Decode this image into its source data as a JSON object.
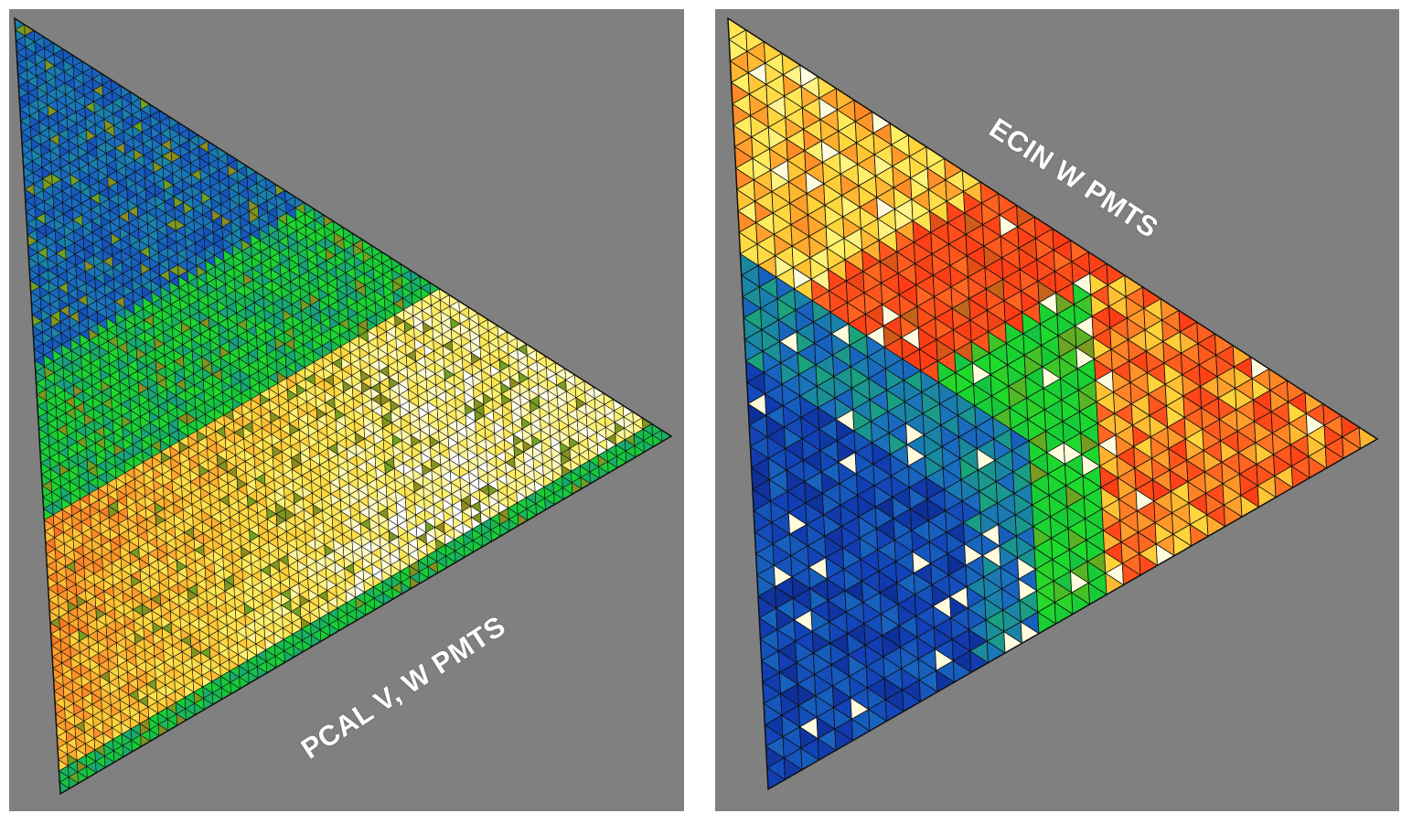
{
  "panels": [
    {
      "id": "pcal",
      "label": "PCAL V, W PMTS",
      "grid_divisions": 68
    },
    {
      "id": "ecin",
      "label": "ECIN W PMTS",
      "grid_divisions": 36
    }
  ],
  "colors": {
    "panel_background": "#808080",
    "page_background": "#ffffff",
    "grid_lines": "#111111",
    "label_text": "#ffffff",
    "colormap": [
      "#0a1a6e",
      "#1240b8",
      "#1a6fc0",
      "#1a9a8a",
      "#16c83a",
      "#1fdc2a",
      "#ff3a14",
      "#ff5a1e",
      "#ff9a2a",
      "#ffd238",
      "#fff064",
      "#ffffff"
    ]
  }
}
